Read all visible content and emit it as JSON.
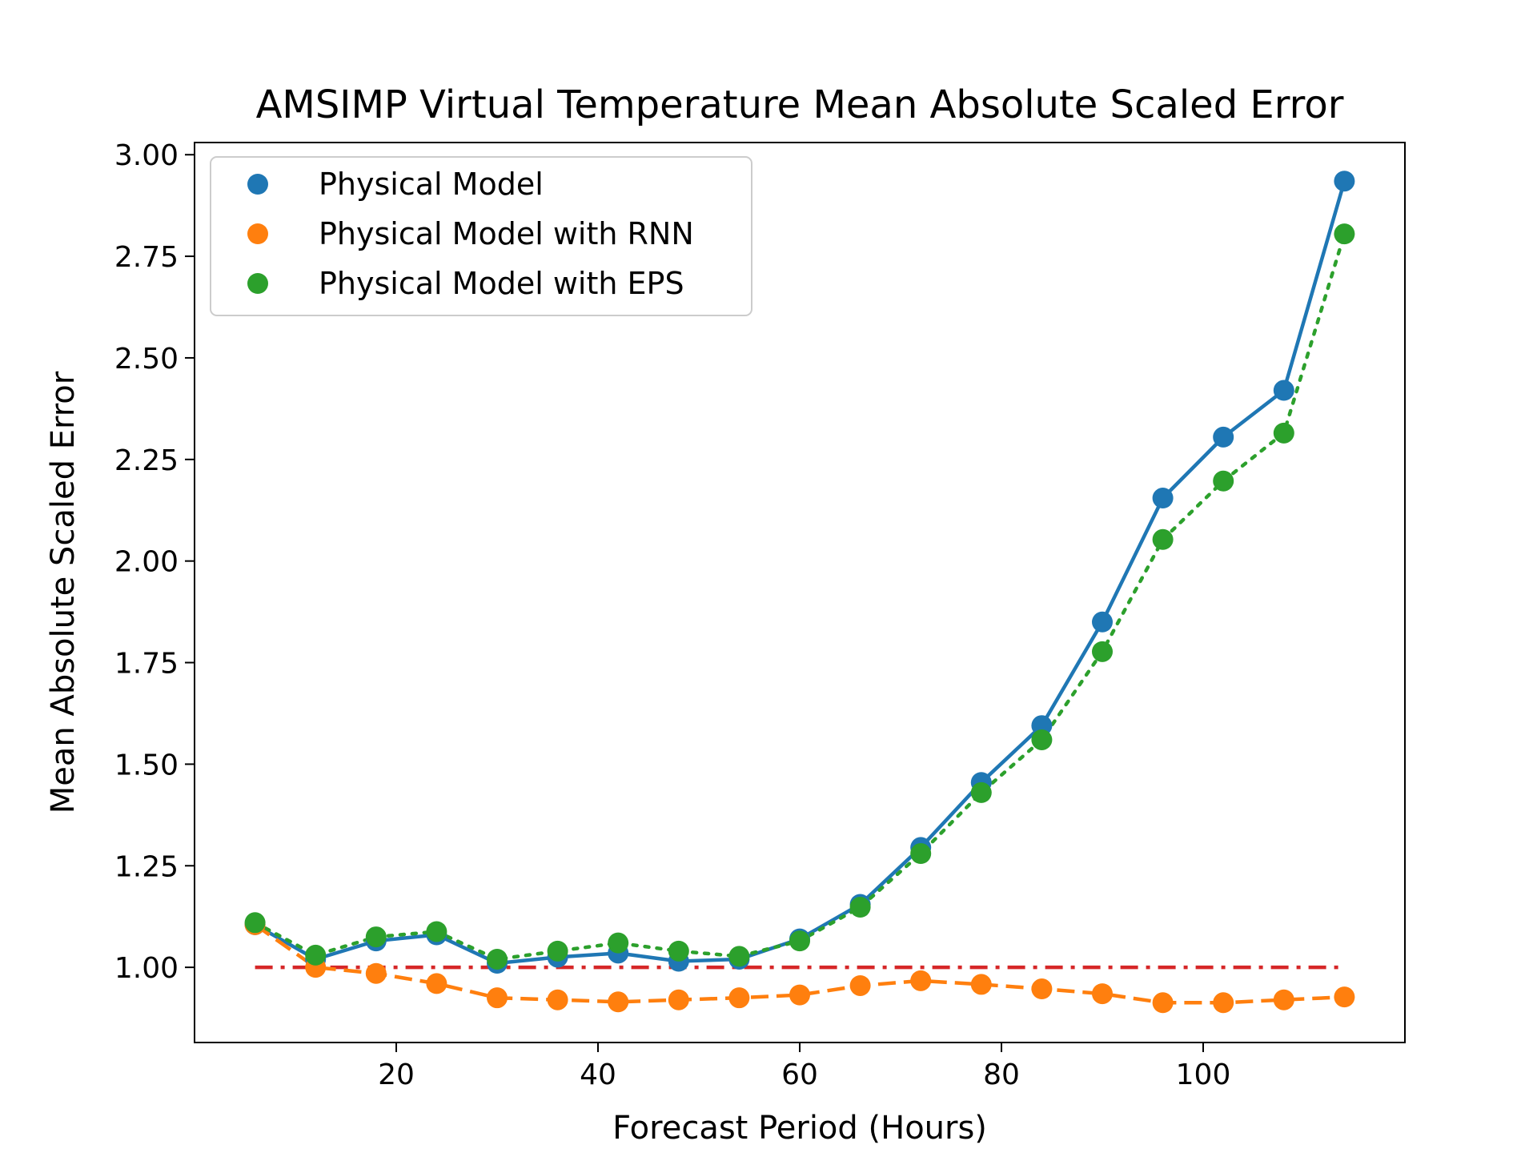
{
  "chart_data": {
    "type": "line",
    "title": "AMSIMP Virtual Temperature Mean Absolute Scaled Error",
    "xlabel": "Forecast Period (Hours)",
    "ylabel": "Mean Absolute Scaled Error",
    "xlim": [
      0,
      120
    ],
    "ylim": [
      0.815,
      3.03
    ],
    "x_ticks": [
      20,
      40,
      60,
      80,
      100
    ],
    "x_tick_labels": [
      "20",
      "40",
      "60",
      "80",
      "100"
    ],
    "y_ticks": [
      1.0,
      1.25,
      1.5,
      1.75,
      2.0,
      2.25,
      2.5,
      2.75,
      3.0
    ],
    "y_tick_labels": [
      "1.00",
      "1.25",
      "1.50",
      "1.75",
      "2.00",
      "2.25",
      "2.50",
      "2.75",
      "3.00"
    ],
    "grid": false,
    "legend_position": "top-left",
    "x": [
      6,
      12,
      18,
      24,
      30,
      36,
      42,
      48,
      54,
      60,
      66,
      72,
      78,
      84,
      90,
      96,
      102,
      108,
      114
    ],
    "series": [
      {
        "name": "Physical Model",
        "color": "#1f77b4",
        "line_style": "solid",
        "values": [
          1.105,
          1.02,
          1.065,
          1.08,
          1.01,
          1.025,
          1.035,
          1.015,
          1.02,
          1.07,
          1.155,
          1.295,
          1.455,
          1.595,
          1.85,
          2.155,
          2.305,
          2.42,
          2.935
        ]
      },
      {
        "name": "Physical Model with RNN",
        "color": "#ff7f0e",
        "line_style": "dashed",
        "values": [
          1.105,
          1.0,
          0.985,
          0.96,
          0.925,
          0.92,
          0.915,
          0.92,
          0.925,
          0.932,
          0.955,
          0.967,
          0.958,
          0.947,
          0.935,
          0.913,
          0.913,
          0.92,
          0.927
        ]
      },
      {
        "name": "Physical Model with EPS",
        "color": "#2ca02c",
        "line_style": "dotted",
        "values": [
          1.11,
          1.03,
          1.075,
          1.088,
          1.02,
          1.04,
          1.06,
          1.04,
          1.027,
          1.065,
          1.148,
          1.28,
          1.43,
          1.56,
          1.777,
          2.053,
          2.197,
          2.315,
          2.805
        ]
      }
    ],
    "reference_line": {
      "y": 1.0,
      "x_range": [
        6,
        114
      ],
      "color": "#d62728",
      "line_style": "dashdot"
    }
  }
}
